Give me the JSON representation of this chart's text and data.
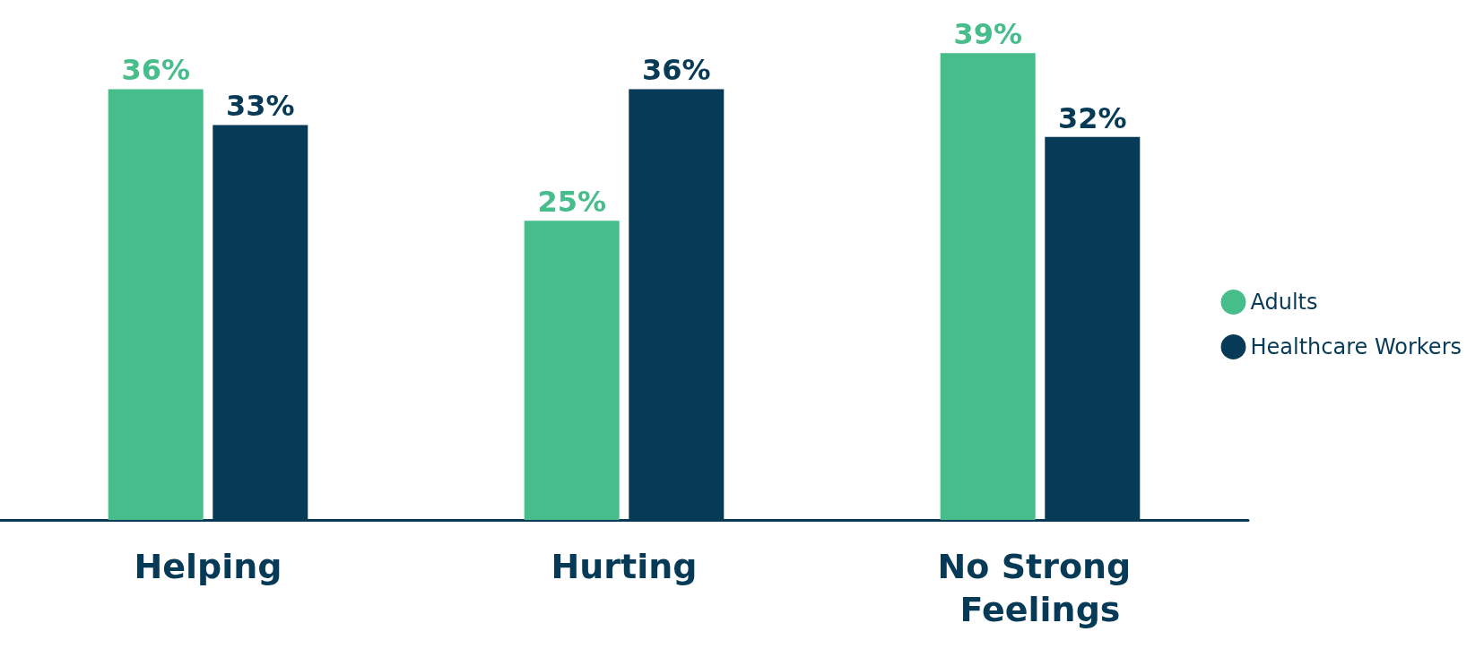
{
  "chart_data": {
    "type": "bar",
    "categories": [
      "Helping",
      "Hurting",
      "No Strong Feelings"
    ],
    "series": [
      {
        "name": "Adults",
        "color": "#48bd8c",
        "values": [
          36,
          25,
          39
        ],
        "value_labels": [
          "36%",
          "25%",
          "39%"
        ]
      },
      {
        "name": "Healthcare Workers",
        "color": "#073a56",
        "values": [
          33,
          36,
          32
        ],
        "value_labels": [
          "33%",
          "36%",
          "32%"
        ]
      }
    ],
    "grid": false,
    "legend": "right"
  }
}
